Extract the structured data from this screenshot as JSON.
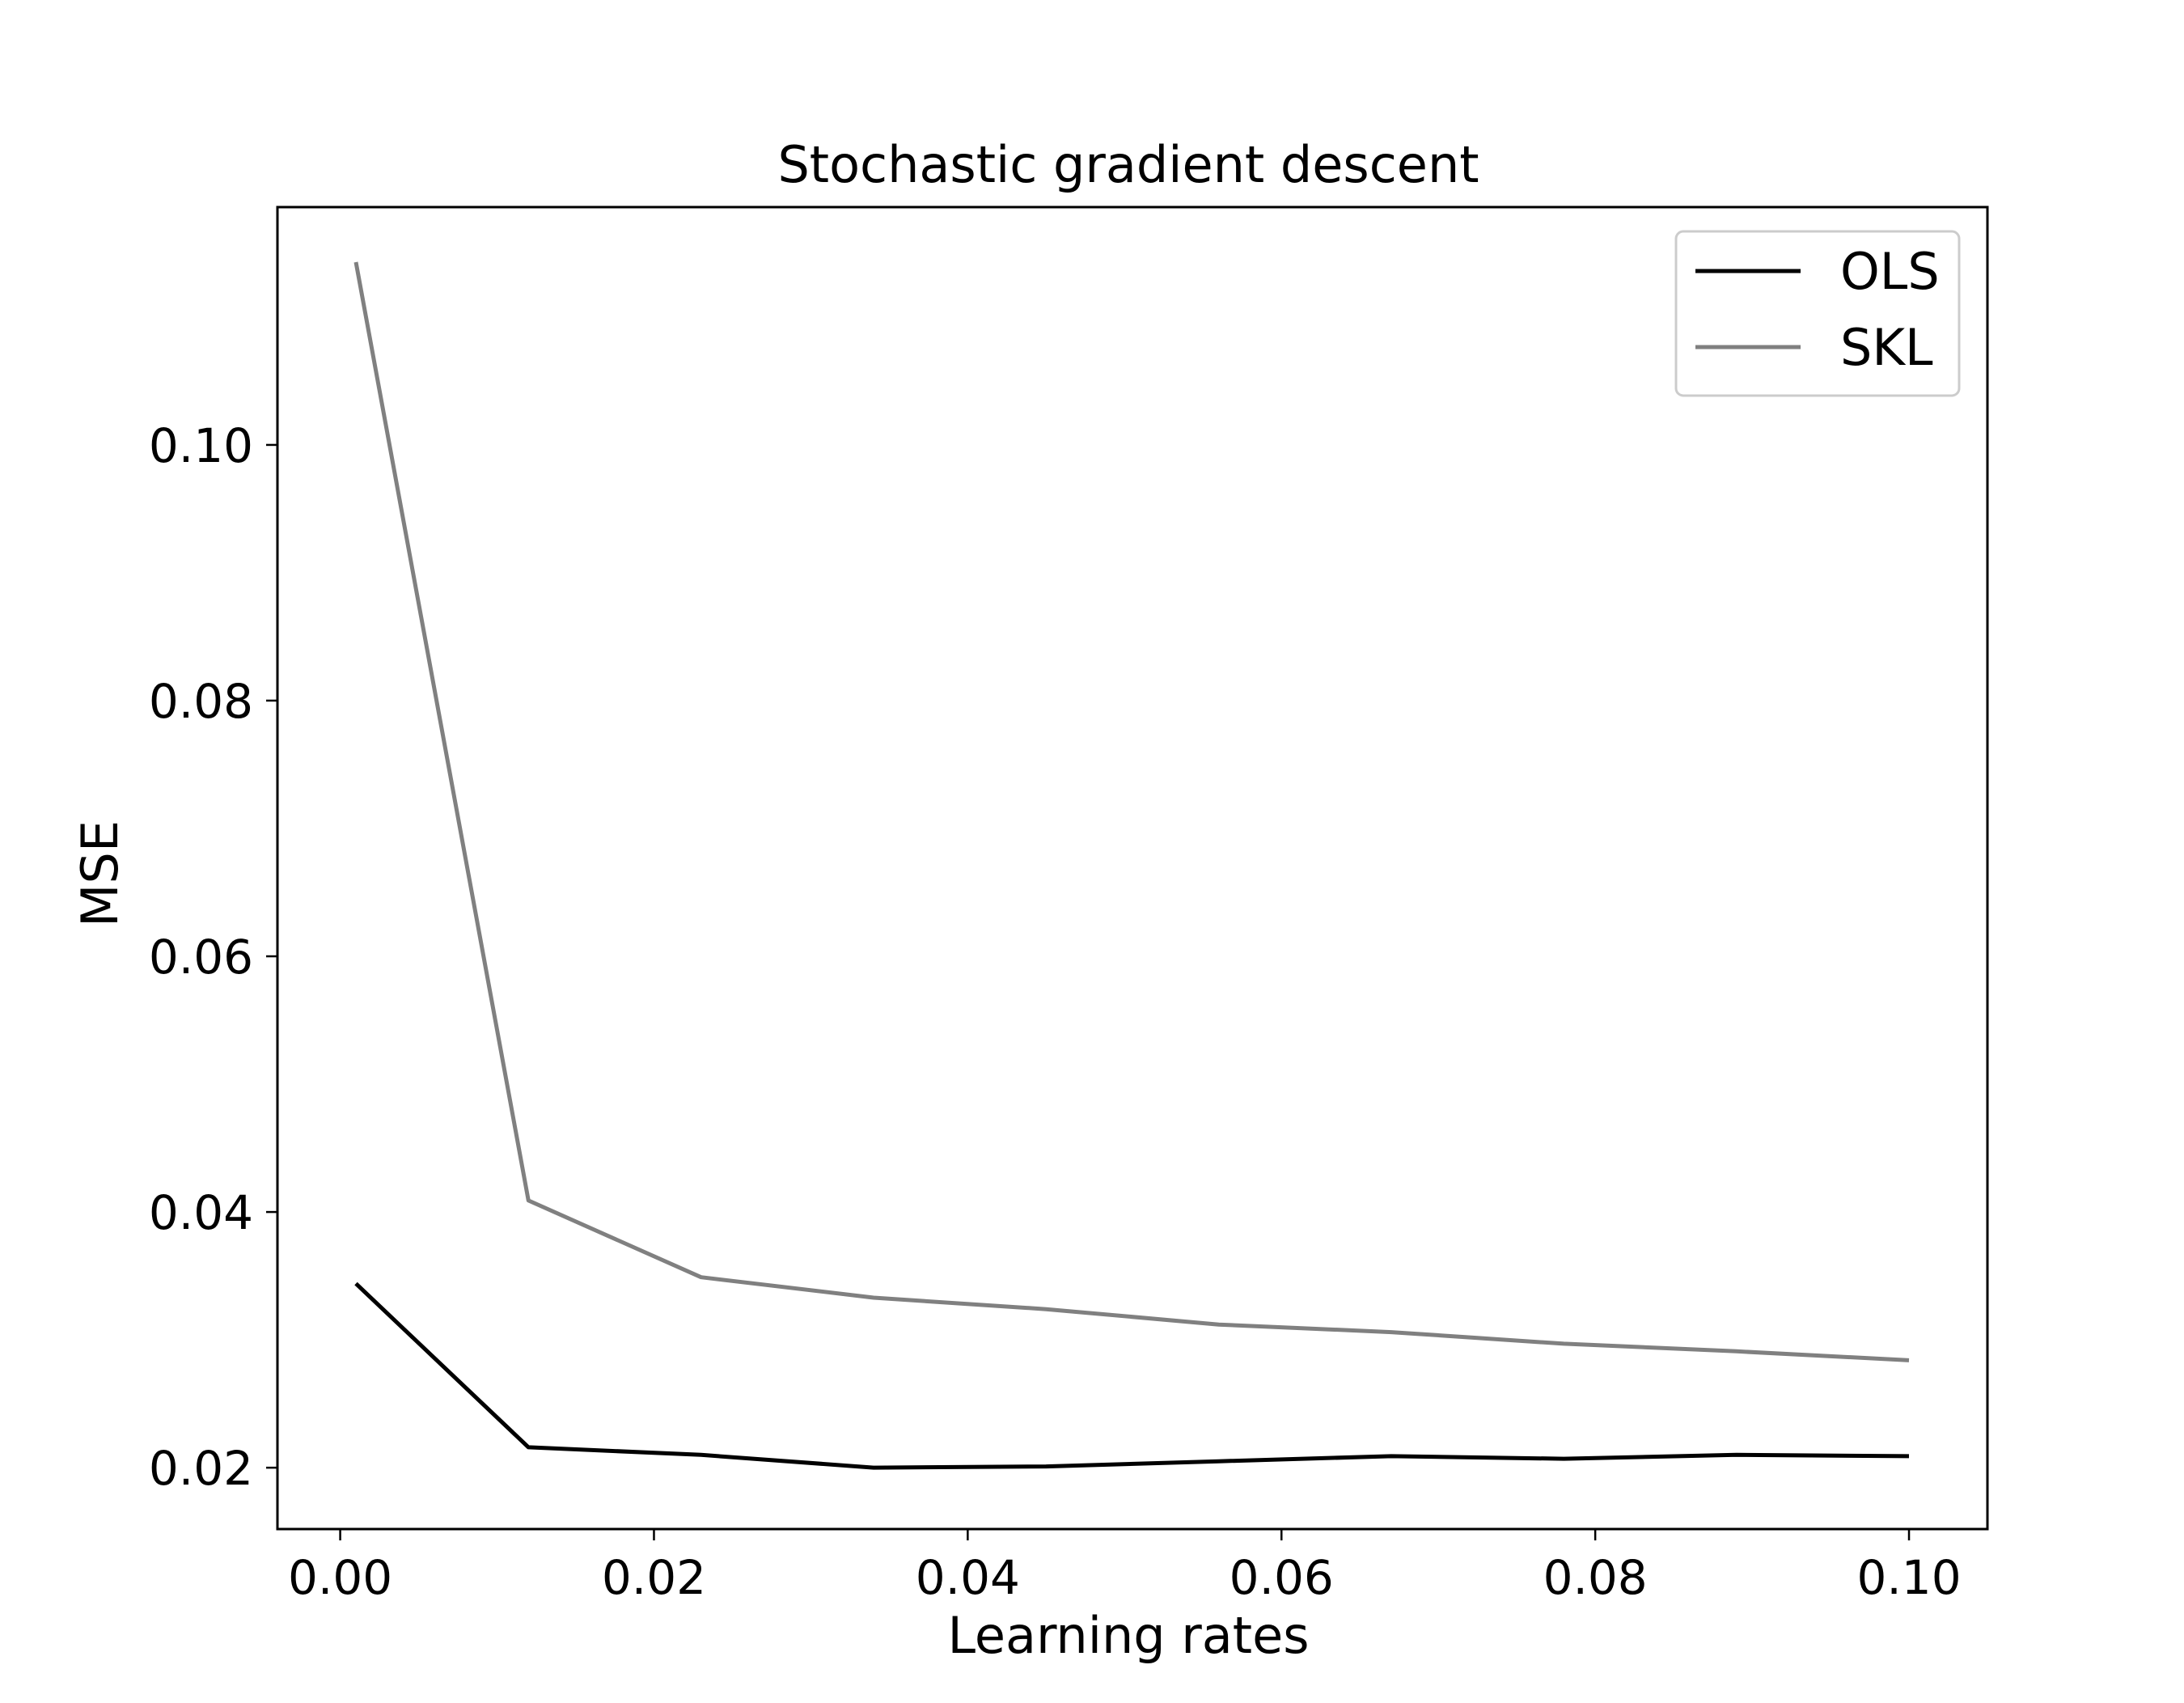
{
  "chart_data": {
    "type": "line",
    "title": "Stochastic gradient descent",
    "xlabel": "Learning rates",
    "ylabel": "MSE",
    "xlim": [
      -0.004,
      0.105
    ],
    "ylim": [
      0.0152,
      0.1186
    ],
    "xticks": [
      0.0,
      0.02,
      0.04,
      0.06,
      0.08,
      0.1
    ],
    "xtick_labels": [
      "0.00",
      "0.02",
      "0.04",
      "0.06",
      "0.08",
      "0.10"
    ],
    "yticks": [
      0.02,
      0.04,
      0.06,
      0.08,
      0.1
    ],
    "ytick_labels": [
      "0.02",
      "0.04",
      "0.06",
      "0.08",
      "0.10"
    ],
    "grid": false,
    "legend_position": "top-right",
    "x": [
      0.001,
      0.012,
      0.023,
      0.034,
      0.045,
      0.056,
      0.067,
      0.078,
      0.089,
      0.1
    ],
    "series": [
      {
        "name": "OLS",
        "color": "#000000",
        "values": [
          0.0344,
          0.0216,
          0.021,
          0.02,
          0.0201,
          0.0205,
          0.0209,
          0.0207,
          0.021,
          0.0209
        ]
      },
      {
        "name": "SKL",
        "color": "#808080",
        "values": [
          0.1143,
          0.0409,
          0.0349,
          0.0333,
          0.0324,
          0.0312,
          0.0306,
          0.0297,
          0.0291,
          0.0284
        ]
      }
    ]
  }
}
